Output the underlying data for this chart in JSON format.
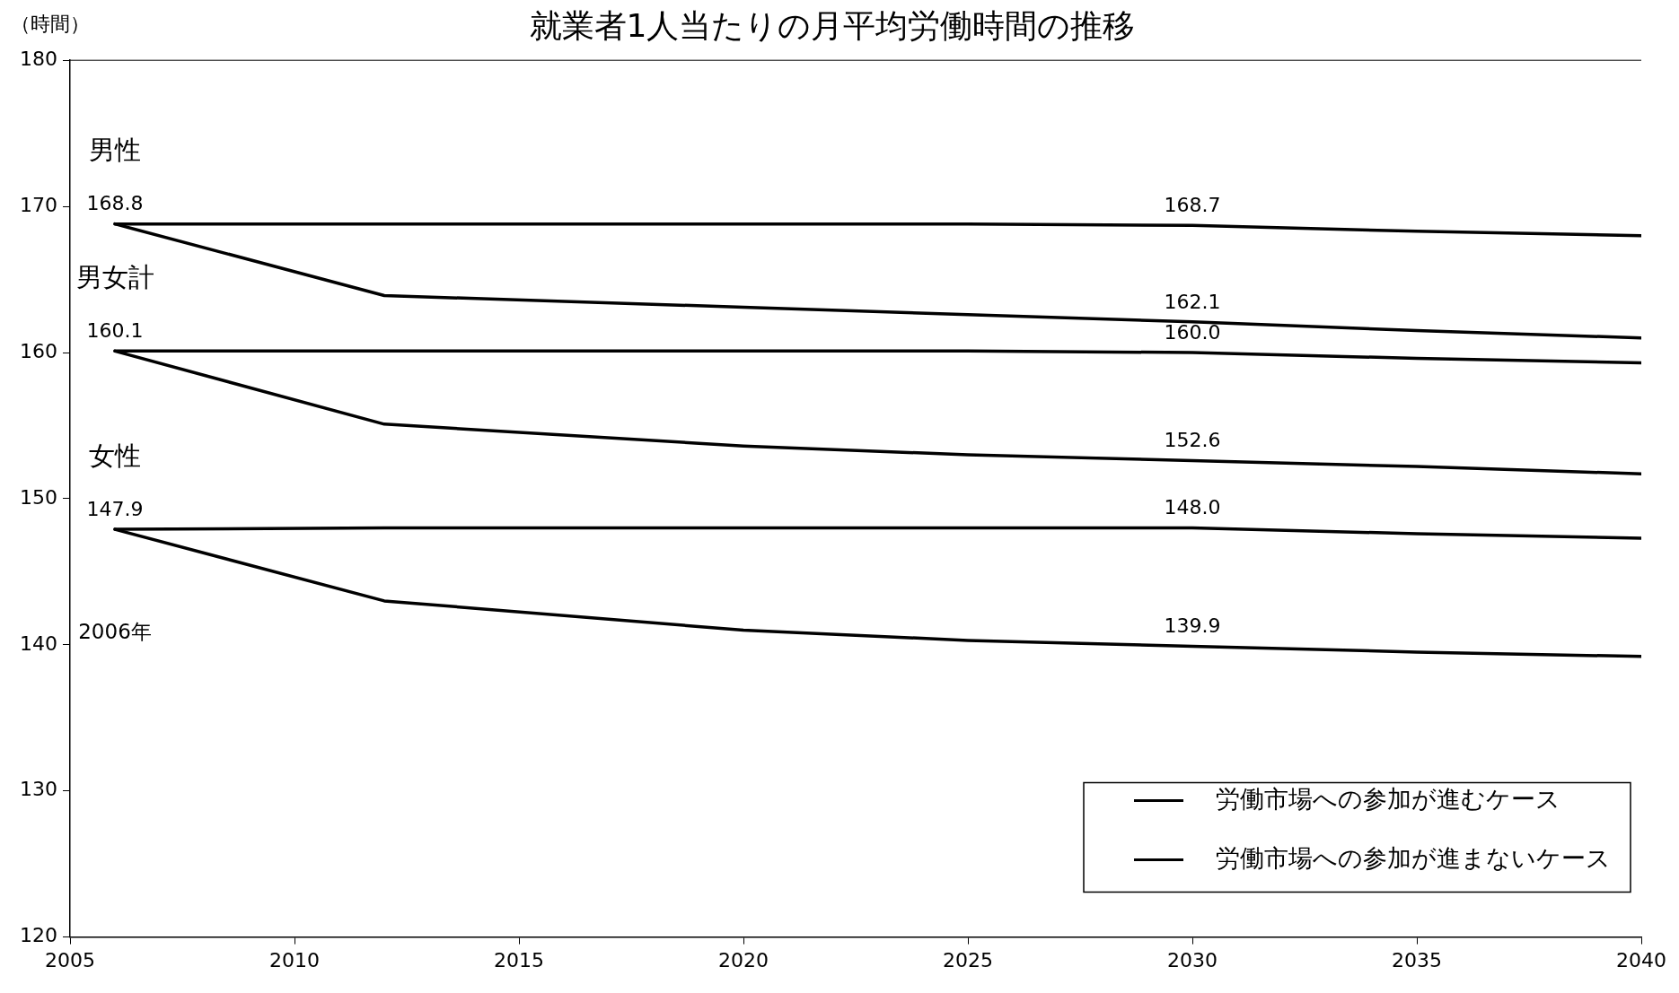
{
  "chart_data": {
    "type": "line",
    "title": "就業者1人当たりの月平均労働時間の推移",
    "ylabel": "（時間）",
    "x": [
      2006,
      2012,
      2020,
      2025,
      2030,
      2035,
      2040
    ],
    "xlim": [
      2005,
      2040
    ],
    "xticks": [
      2005,
      2010,
      2015,
      2020,
      2025,
      2030,
      2035,
      2040
    ],
    "ylim": [
      120,
      180
    ],
    "yticks": [
      120,
      130,
      140,
      150,
      160,
      170,
      180
    ],
    "grid": false,
    "legend": "bottom right",
    "marker": "none",
    "line_style": "solid",
    "series": [
      {
        "name": "労働市場への参加が進むケース",
        "color": "#000000",
        "values": [
          168.8,
          163.9,
          163.1,
          162.6,
          162.1,
          161.5,
          161.0
        ],
        "value_labels": [
          null,
          null,
          null,
          null,
          "162.1",
          null,
          null
        ]
      },
      {
        "name": "労働市場への参加が進まないケース",
        "color": "#000000",
        "values": [
          168.8,
          168.8,
          168.8,
          168.8,
          168.7,
          168.3,
          168.0
        ],
        "value_labels": [
          "168.8",
          null,
          null,
          null,
          "168.7",
          null,
          null
        ]
      },
      {
        "color": "#000000",
        "values": [
          160.1,
          155.1,
          153.6,
          153.0,
          152.6,
          152.2,
          151.7
        ],
        "value_labels": [
          null,
          null,
          null,
          null,
          "152.6",
          null,
          null
        ]
      },
      {
        "color": "#000000",
        "values": [
          160.1,
          160.1,
          160.1,
          160.1,
          160.0,
          159.6,
          159.3
        ],
        "value_labels": [
          "160.1",
          null,
          null,
          null,
          "160.0",
          null,
          null
        ]
      },
      {
        "color": "#000000",
        "values": [
          147.9,
          143.0,
          141.0,
          140.3,
          139.9,
          139.5,
          139.2
        ],
        "value_labels": [
          null,
          null,
          null,
          null,
          "139.9",
          null,
          null
        ]
      },
      {
        "color": "#000000",
        "values": [
          147.9,
          148.0,
          148.0,
          148.0,
          148.0,
          147.6,
          147.3
        ],
        "value_labels": [
          "147.9",
          null,
          null,
          null,
          "148.0",
          null,
          null
        ]
      }
    ],
    "annotations": [
      "男性",
      "男女計",
      "女性",
      "2006年"
    ]
  }
}
